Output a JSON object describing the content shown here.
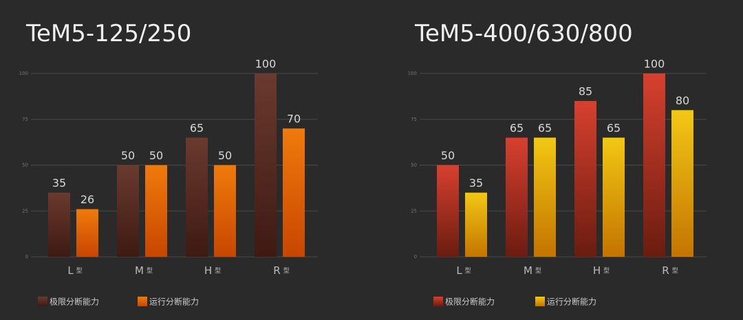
{
  "chart_data": [
    {
      "type": "bar",
      "title": "TeM5-125/250",
      "categories": [
        "L",
        "M",
        "H",
        "R"
      ],
      "category_suffix": "型",
      "series": [
        {
          "name": "极限分断能力",
          "color": "#6a3a2e",
          "gradient_to": "#3e1a12",
          "values": [
            35,
            50,
            65,
            100
          ]
        },
        {
          "name": "运行分断能力",
          "color": "#f07a0c",
          "gradient_to": "#c84600",
          "values": [
            26,
            50,
            50,
            70
          ]
        }
      ],
      "ylim": [
        0,
        100
      ],
      "yticks": [
        0,
        25,
        50,
        75,
        100
      ],
      "grid": true
    },
    {
      "type": "bar",
      "title": "TeM5-400/630/800",
      "categories": [
        "L",
        "M",
        "H",
        "R"
      ],
      "category_suffix": "型",
      "series": [
        {
          "name": "极限分断能力",
          "color": "#d8402e",
          "gradient_to": "#6a1c10",
          "values": [
            50,
            65,
            85,
            100
          ]
        },
        {
          "name": "运行分断能力",
          "color": "#f2c814",
          "gradient_to": "#c47400",
          "values": [
            35,
            65,
            65,
            80
          ]
        }
      ],
      "ylim": [
        0,
        100
      ],
      "yticks": [
        0,
        25,
        50,
        75,
        100
      ],
      "grid": true
    }
  ]
}
